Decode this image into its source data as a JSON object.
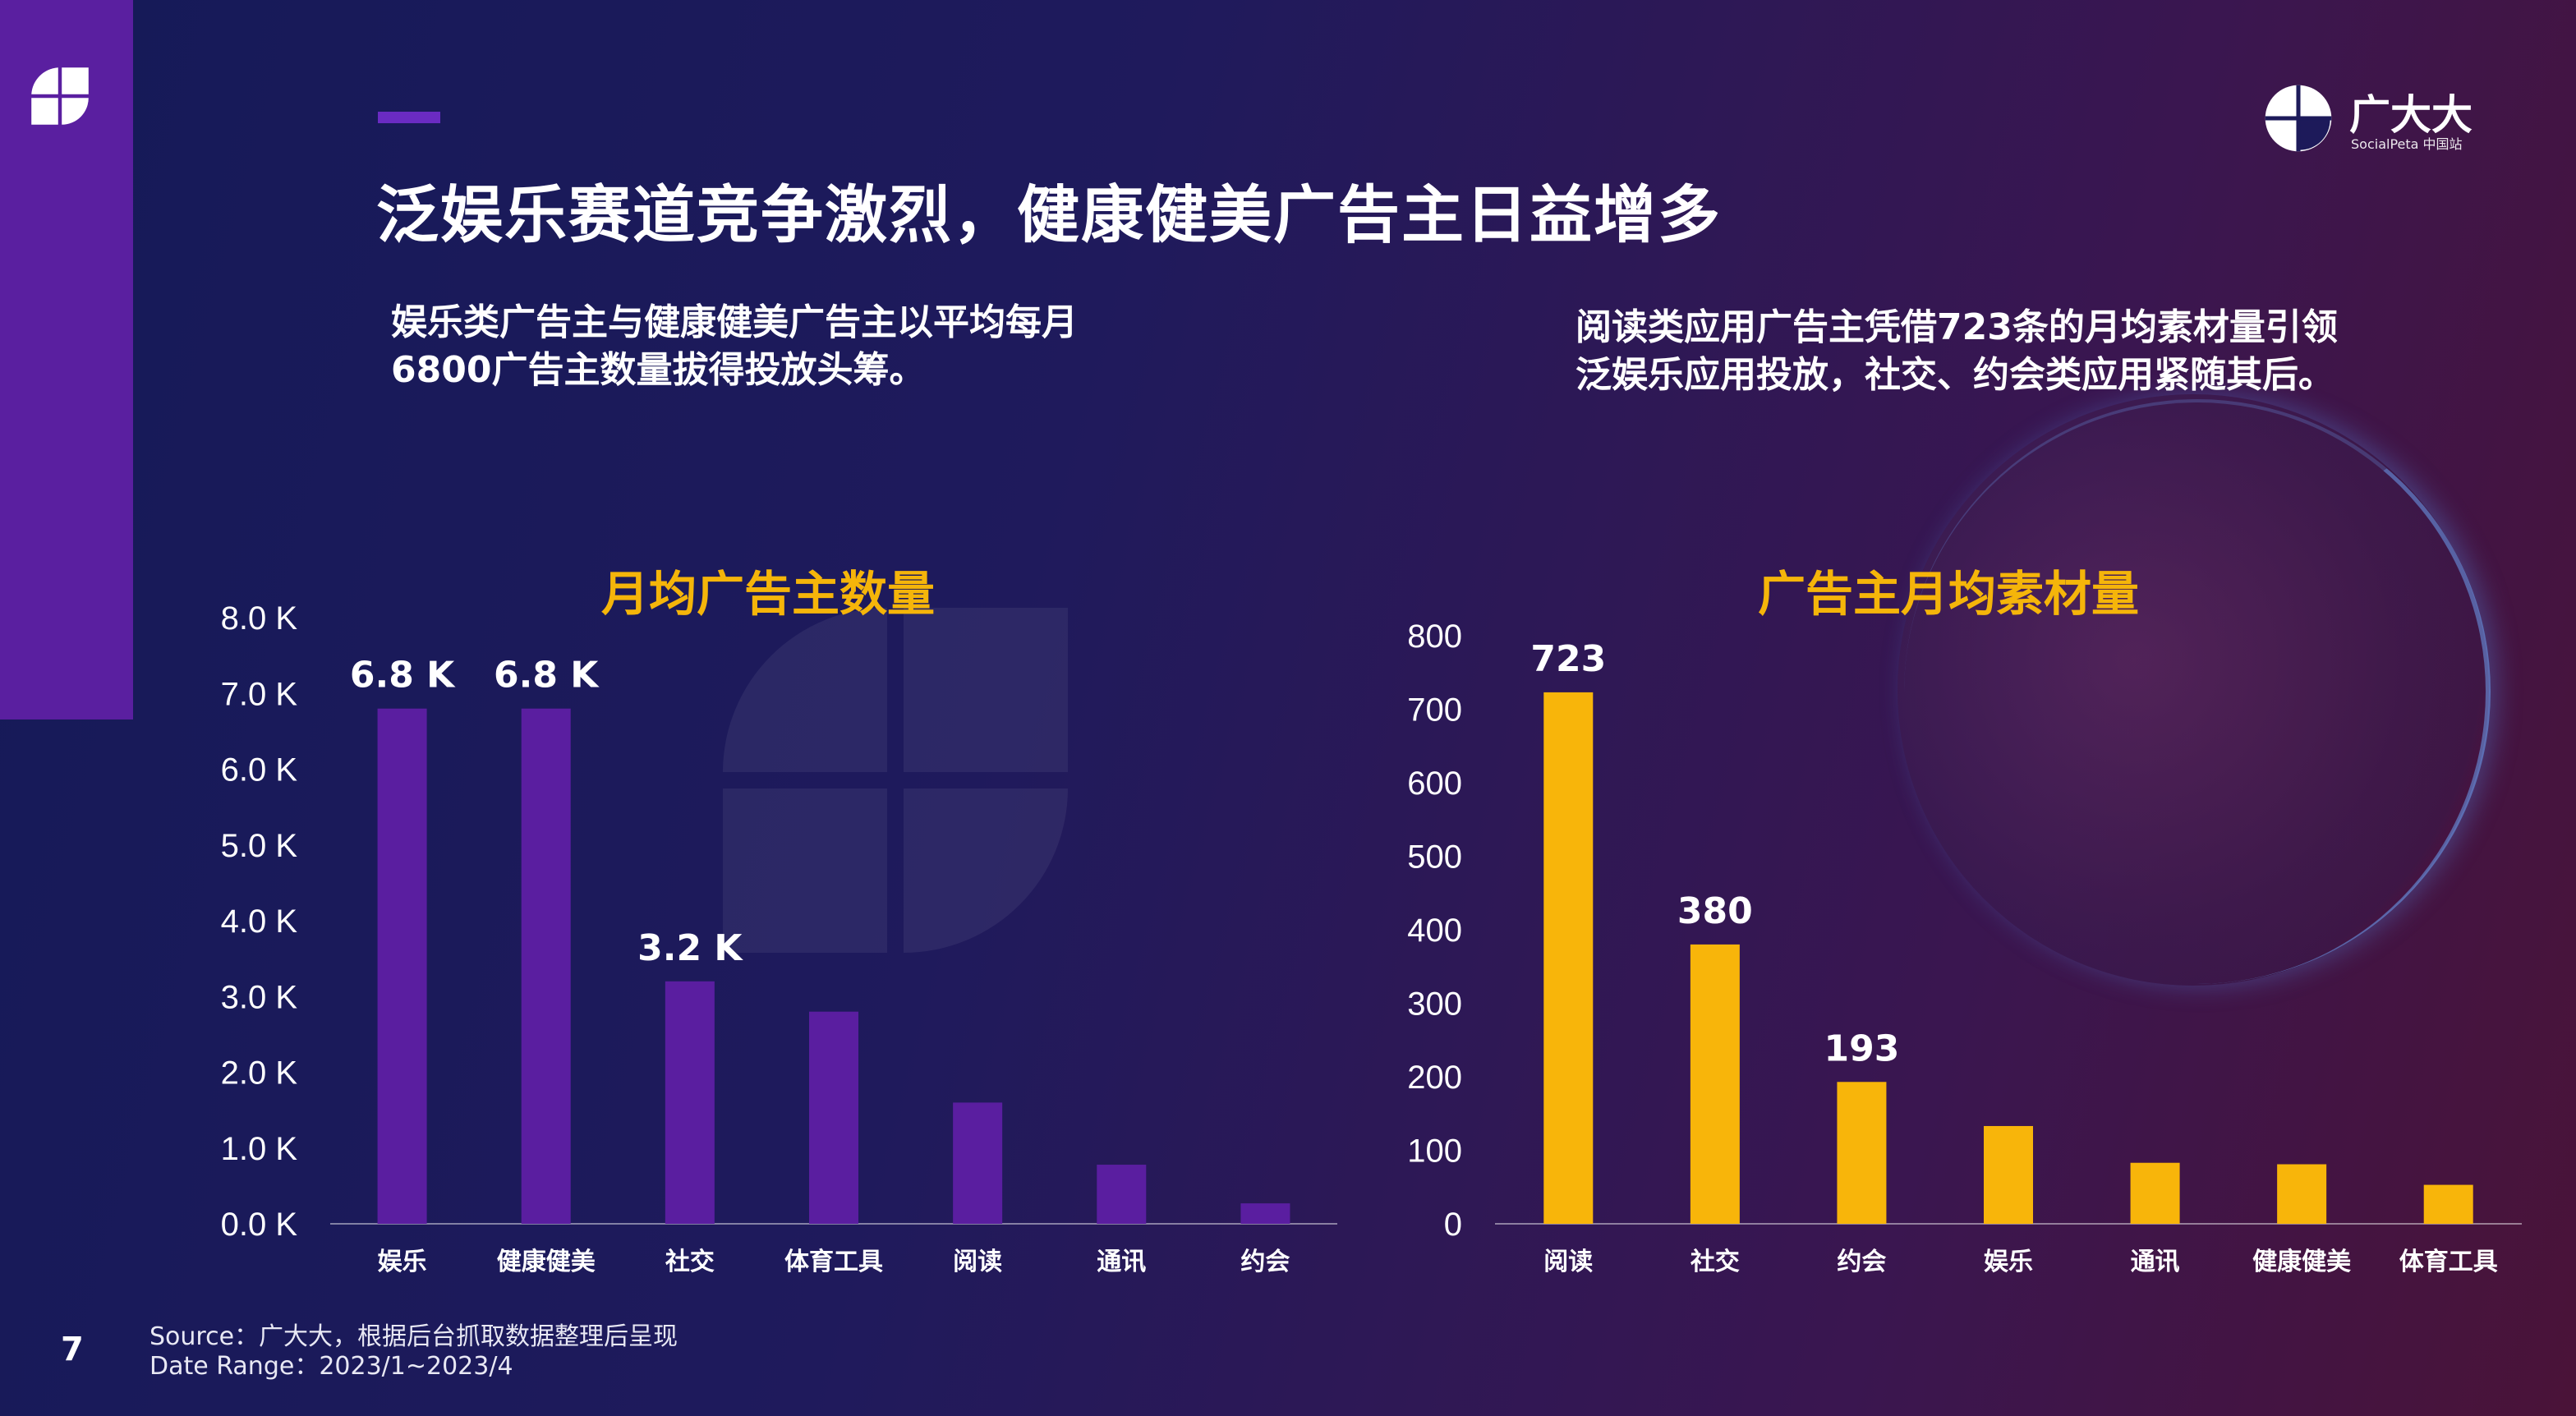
{
  "page": {
    "title": "泛娱乐赛道竞争激烈，健康健美广告主日益增多",
    "page_number": "7"
  },
  "brand": {
    "name": "广大大",
    "sub": "SocialPeta 中国站"
  },
  "summary_left": "娱乐类广告主与健康健美广告主以平均每月6800广告主数量拔得投放头筹。",
  "summary_right": "阅读类应用广告主凭借723条的月均素材量引领泛娱乐应用投放，社交、约会类应用紧随其后。",
  "footer": {
    "source": "Source：广大大，根据后台抓取数据整理后呈现",
    "date_range": "Date Range：2023/1~2023/4"
  },
  "colors": {
    "left_bar": "#5a1ea0",
    "right_bar": "#f8b50a",
    "title_accent": "#f5b50a"
  },
  "chart_data": [
    {
      "type": "bar",
      "title": "月均广告主数量",
      "categories": [
        "娱乐",
        "健康健美",
        "社交",
        "体育工具",
        "阅读",
        "通讯",
        "约会"
      ],
      "values": [
        6800,
        6800,
        3200,
        2800,
        1600,
        780,
        270
      ],
      "data_labels": [
        "6.8 K",
        "6.8 K",
        "3.2 K",
        "",
        "",
        "",
        ""
      ],
      "y_ticks": [
        "0.0 K",
        "1.0 K",
        "2.0 K",
        "3.0 K",
        "4.0 K",
        "5.0 K",
        "6.0 K",
        "7.0 K",
        "8.0 K"
      ],
      "ylim": [
        0,
        8000
      ],
      "grid": false
    },
    {
      "type": "bar",
      "title": "广告主月均素材量",
      "categories": [
        "阅读",
        "社交",
        "约会",
        "娱乐",
        "通讯",
        "健康健美",
        "体育工具"
      ],
      "values": [
        723,
        380,
        193,
        133,
        83,
        81,
        53
      ],
      "data_labels": [
        "723",
        "380",
        "193",
        "",
        "",
        "",
        ""
      ],
      "y_ticks": [
        "0",
        "100",
        "200",
        "300",
        "400",
        "500",
        "600",
        "700",
        "800"
      ],
      "ylim": [
        0,
        800
      ],
      "grid": false
    }
  ]
}
